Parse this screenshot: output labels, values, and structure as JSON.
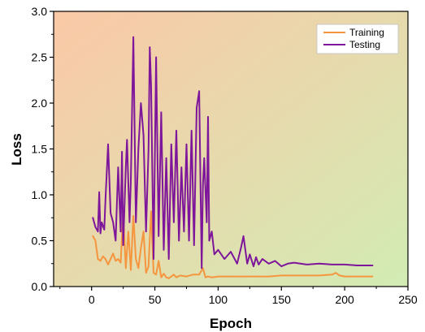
{
  "chart_data": {
    "type": "line",
    "xlabel": "Epoch",
    "ylabel": "Loss",
    "xlim": [
      -30,
      250
    ],
    "ylim": [
      0,
      3.0
    ],
    "x_ticks": [
      0,
      50,
      100,
      150,
      200,
      250
    ],
    "y_ticks": [
      0.0,
      0.5,
      1.0,
      1.5,
      2.0,
      2.5,
      3.0
    ],
    "x_tick_labels": [
      "0",
      "50",
      "100",
      "150",
      "200",
      "250"
    ],
    "y_tick_labels": [
      "0.0",
      "0.5",
      "1.0",
      "1.5",
      "2.0",
      "2.5",
      "3.0"
    ],
    "grid": false,
    "legend_position": "top-right",
    "background_gradient": [
      "#fbc8a6",
      "#d2ecb4"
    ],
    "series": [
      {
        "name": "Training",
        "color": "#f5963f",
        "x": [
          1,
          3,
          5,
          7,
          9,
          11,
          13,
          15,
          17,
          19,
          21,
          23,
          25,
          27,
          29,
          31,
          33,
          35,
          37,
          39,
          41,
          43,
          45,
          47,
          49,
          51,
          53,
          55,
          57,
          59,
          61,
          63,
          65,
          67,
          70,
          75,
          80,
          85,
          88,
          90,
          92,
          95,
          100,
          110,
          120,
          130,
          140,
          150,
          160,
          170,
          180,
          190,
          193,
          196,
          200,
          210,
          222
        ],
        "values": [
          0.55,
          0.5,
          0.3,
          0.28,
          0.33,
          0.3,
          0.24,
          0.3,
          0.36,
          0.28,
          0.3,
          0.26,
          0.8,
          0.2,
          0.6,
          0.18,
          0.77,
          0.3,
          0.2,
          0.42,
          0.6,
          0.15,
          0.22,
          0.82,
          0.15,
          0.13,
          0.28,
          0.1,
          0.14,
          0.1,
          0.09,
          0.11,
          0.13,
          0.1,
          0.12,
          0.11,
          0.13,
          0.13,
          0.2,
          0.1,
          0.11,
          0.1,
          0.11,
          0.11,
          0.11,
          0.11,
          0.11,
          0.12,
          0.12,
          0.12,
          0.12,
          0.13,
          0.15,
          0.12,
          0.11,
          0.11,
          0.11
        ]
      },
      {
        "name": "Testing",
        "color": "#7d169a",
        "x": [
          1,
          3,
          5,
          6,
          7,
          8,
          10,
          11,
          13,
          15,
          17,
          19,
          21,
          23,
          24,
          25,
          27,
          28,
          30,
          31,
          33,
          35,
          37,
          39,
          41,
          43,
          45,
          46,
          47,
          49,
          51,
          53,
          55,
          57,
          59,
          61,
          63,
          65,
          67,
          69,
          71,
          73,
          75,
          77,
          79,
          81,
          83,
          85,
          87,
          88,
          89,
          91,
          92,
          93,
          95,
          97,
          100,
          105,
          110,
          115,
          118,
          120,
          123,
          125,
          128,
          130,
          132,
          135,
          140,
          145,
          150,
          155,
          160,
          170,
          180,
          190,
          200,
          210,
          222
        ],
        "values": [
          0.75,
          0.65,
          0.6,
          1.03,
          0.58,
          0.7,
          0.62,
          0.95,
          1.55,
          0.8,
          0.7,
          0.5,
          1.3,
          0.6,
          1.47,
          0.45,
          1.3,
          1.6,
          0.7,
          1.15,
          2.72,
          0.7,
          1.5,
          2.0,
          1.65,
          0.6,
          1.5,
          2.61,
          2.2,
          0.3,
          2.5,
          0.55,
          1.9,
          0.4,
          1.4,
          0.3,
          1.55,
          0.7,
          1.7,
          0.5,
          1.3,
          0.6,
          1.55,
          0.5,
          1.7,
          0.45,
          1.95,
          2.13,
          0.2,
          1.1,
          1.4,
          0.7,
          1.85,
          0.5,
          0.6,
          0.35,
          0.4,
          0.3,
          0.38,
          0.25,
          0.42,
          0.55,
          0.25,
          0.35,
          0.22,
          0.32,
          0.24,
          0.3,
          0.25,
          0.28,
          0.22,
          0.25,
          0.26,
          0.24,
          0.25,
          0.24,
          0.24,
          0.23,
          0.23
        ]
      }
    ]
  }
}
